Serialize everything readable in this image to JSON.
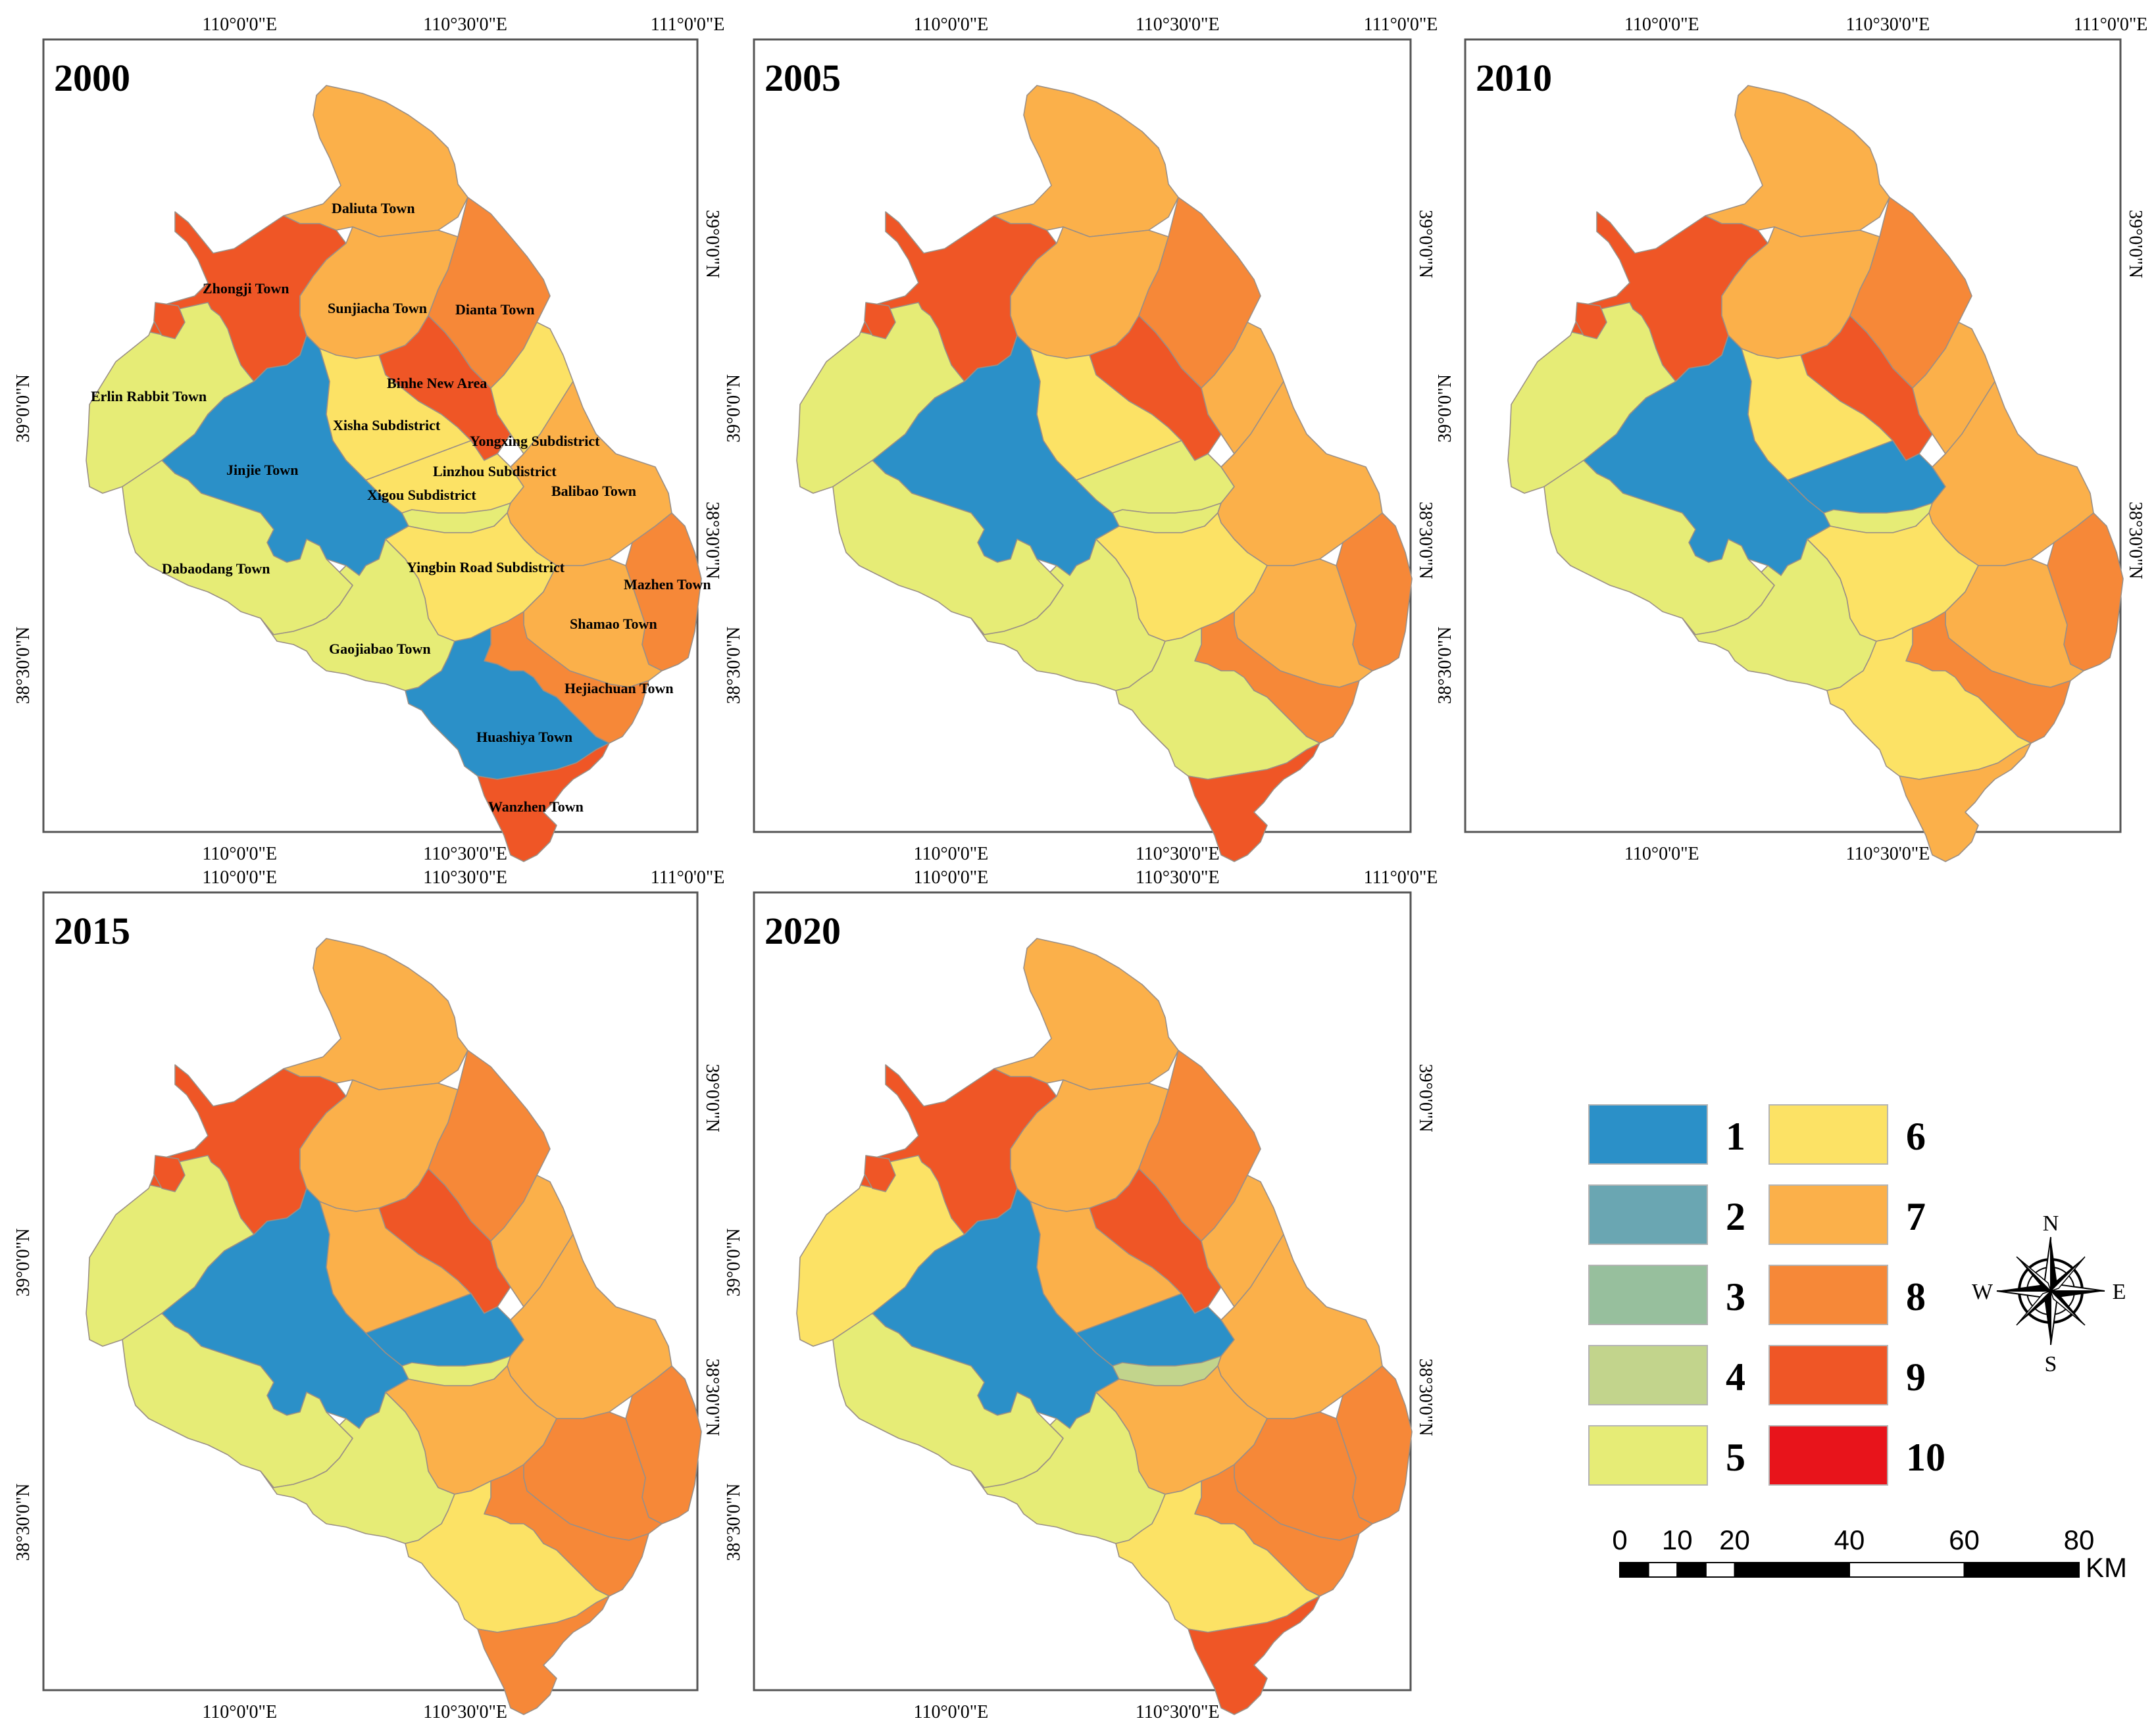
{
  "panels": [
    {
      "year": "2000",
      "labels_shown": true,
      "classes": {
        "Zhongji Town": 9,
        "Daliuta Town": 7,
        "Sunjiacha Town": 7,
        "Dianta Town": 8,
        "Binhe New Area": 9,
        "Yongxing Subdistrict": 6,
        "Erlin Rabbit Town": 5,
        "Xisha Subdistrict": 6,
        "Jinjie Town": 1,
        "Linzhou Subdistrict": 6,
        "Xigou Subdistrict": 5,
        "Balibao Town": 7,
        "Dabaodang Town": 5,
        "Yingbin Road Subdistrict": 6,
        "Mazhen Town": 8,
        "Shamao Town": 7,
        "Gaojiabao Town": 5,
        "Hejiachuan Town": 8,
        "Huashiya Town": 1,
        "Wanzhen Town": 9
      }
    },
    {
      "year": "2005",
      "labels_shown": false,
      "classes": {
        "Zhongji Town": 9,
        "Daliuta Town": 7,
        "Sunjiacha Town": 7,
        "Dianta Town": 8,
        "Binhe New Area": 9,
        "Yongxing Subdistrict": 7,
        "Erlin Rabbit Town": 5,
        "Xisha Subdistrict": 6,
        "Jinjie Town": 1,
        "Linzhou Subdistrict": 5,
        "Xigou Subdistrict": 5,
        "Balibao Town": 7,
        "Dabaodang Town": 5,
        "Yingbin Road Subdistrict": 6,
        "Mazhen Town": 8,
        "Shamao Town": 7,
        "Gaojiabao Town": 5,
        "Hejiachuan Town": 8,
        "Huashiya Town": 5,
        "Wanzhen Town": 9
      }
    },
    {
      "year": "2010",
      "labels_shown": false,
      "classes": {
        "Zhongji Town": 9,
        "Daliuta Town": 7,
        "Sunjiacha Town": 7,
        "Dianta Town": 8,
        "Binhe New Area": 9,
        "Yongxing Subdistrict": 7,
        "Erlin Rabbit Town": 5,
        "Xisha Subdistrict": 6,
        "Jinjie Town": 1,
        "Linzhou Subdistrict": 1,
        "Xigou Subdistrict": 5,
        "Balibao Town": 7,
        "Dabaodang Town": 5,
        "Yingbin Road Subdistrict": 6,
        "Mazhen Town": 8,
        "Shamao Town": 7,
        "Gaojiabao Town": 5,
        "Hejiachuan Town": 8,
        "Huashiya Town": 6,
        "Wanzhen Town": 7
      }
    },
    {
      "year": "2015",
      "labels_shown": false,
      "classes": {
        "Zhongji Town": 9,
        "Daliuta Town": 7,
        "Sunjiacha Town": 7,
        "Dianta Town": 8,
        "Binhe New Area": 9,
        "Yongxing Subdistrict": 7,
        "Erlin Rabbit Town": 5,
        "Xisha Subdistrict": 7,
        "Jinjie Town": 1,
        "Linzhou Subdistrict": 1,
        "Xigou Subdistrict": 5,
        "Balibao Town": 7,
        "Dabaodang Town": 5,
        "Yingbin Road Subdistrict": 7,
        "Mazhen Town": 8,
        "Shamao Town": 8,
        "Gaojiabao Town": 5,
        "Hejiachuan Town": 8,
        "Huashiya Town": 6,
        "Wanzhen Town": 8
      }
    },
    {
      "year": "2020",
      "labels_shown": false,
      "classes": {
        "Zhongji Town": 9,
        "Daliuta Town": 7,
        "Sunjiacha Town": 7,
        "Dianta Town": 8,
        "Binhe New Area": 9,
        "Yongxing Subdistrict": 7,
        "Erlin Rabbit Town": 6,
        "Xisha Subdistrict": 7,
        "Jinjie Town": 1,
        "Linzhou Subdistrict": 1,
        "Xigou Subdistrict": 4,
        "Balibao Town": 7,
        "Dabaodang Town": 5,
        "Yingbin Road Subdistrict": 7,
        "Mazhen Town": 8,
        "Shamao Town": 8,
        "Gaojiabao Town": 5,
        "Hejiachuan Town": 8,
        "Huashiya Town": 6,
        "Wanzhen Town": 9
      }
    }
  ],
  "axes": {
    "top_ticks": [
      "110°0'0\"E",
      "110°30'0\"E",
      "111°0'0\"E"
    ],
    "bottom_ticks": [
      "110°0'0\"E",
      "110°30'0\"E"
    ],
    "lat_ticks": [
      "39°0'0\"N",
      "38°30'0\"N"
    ]
  },
  "legend": {
    "items": [
      {
        "label": "1",
        "color": "#2b90c8"
      },
      {
        "label": "2",
        "color": "#6aa6b2"
      },
      {
        "label": "3",
        "color": "#97bf9d"
      },
      {
        "label": "4",
        "color": "#c2d48c"
      },
      {
        "label": "5",
        "color": "#e6ec76"
      },
      {
        "label": "6",
        "color": "#fce265"
      },
      {
        "label": "7",
        "color": "#fbb04a"
      },
      {
        "label": "8",
        "color": "#f68838"
      },
      {
        "label": "9",
        "color": "#ef5626"
      },
      {
        "label": "10",
        "color": "#e8141b"
      }
    ]
  },
  "scalebar": {
    "ticks": [
      "0",
      "10",
      "20",
      "40",
      "60",
      "80"
    ],
    "unit": "KM"
  },
  "compass": {
    "north": "N",
    "south": "S",
    "east": "E",
    "west": "W",
    "icon": "compass-rose-icon"
  }
}
